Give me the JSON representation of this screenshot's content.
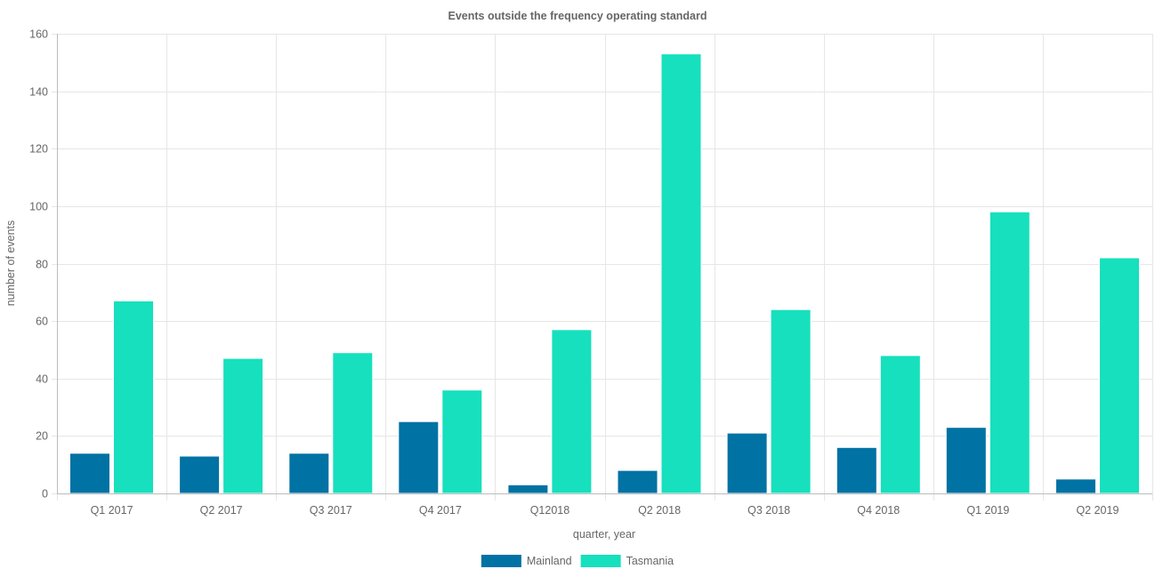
{
  "chart_data": {
    "type": "bar",
    "title": "Events outside the frequency operating standard",
    "xlabel": "quarter, year",
    "ylabel": "number of events",
    "ylim": [
      0,
      160
    ],
    "yticks": [
      0,
      20,
      40,
      60,
      80,
      100,
      120,
      140,
      160
    ],
    "grid": true,
    "legend_position": "bottom",
    "categories": [
      "Q1 2017",
      "Q2 2017",
      "Q3 2017",
      "Q4 2017",
      "Q12018",
      "Q2 2018",
      "Q3 2018",
      "Q4 2018",
      "Q1 2019",
      "Q2 2019"
    ],
    "series": [
      {
        "name": "Mainland",
        "color": "#0072a3",
        "values": [
          14,
          13,
          14,
          25,
          3,
          8,
          21,
          16,
          23,
          5
        ]
      },
      {
        "name": "Tasmania",
        "color": "#16e0bd",
        "values": [
          67,
          47,
          49,
          36,
          57,
          153,
          64,
          48,
          98,
          82
        ]
      }
    ]
  }
}
